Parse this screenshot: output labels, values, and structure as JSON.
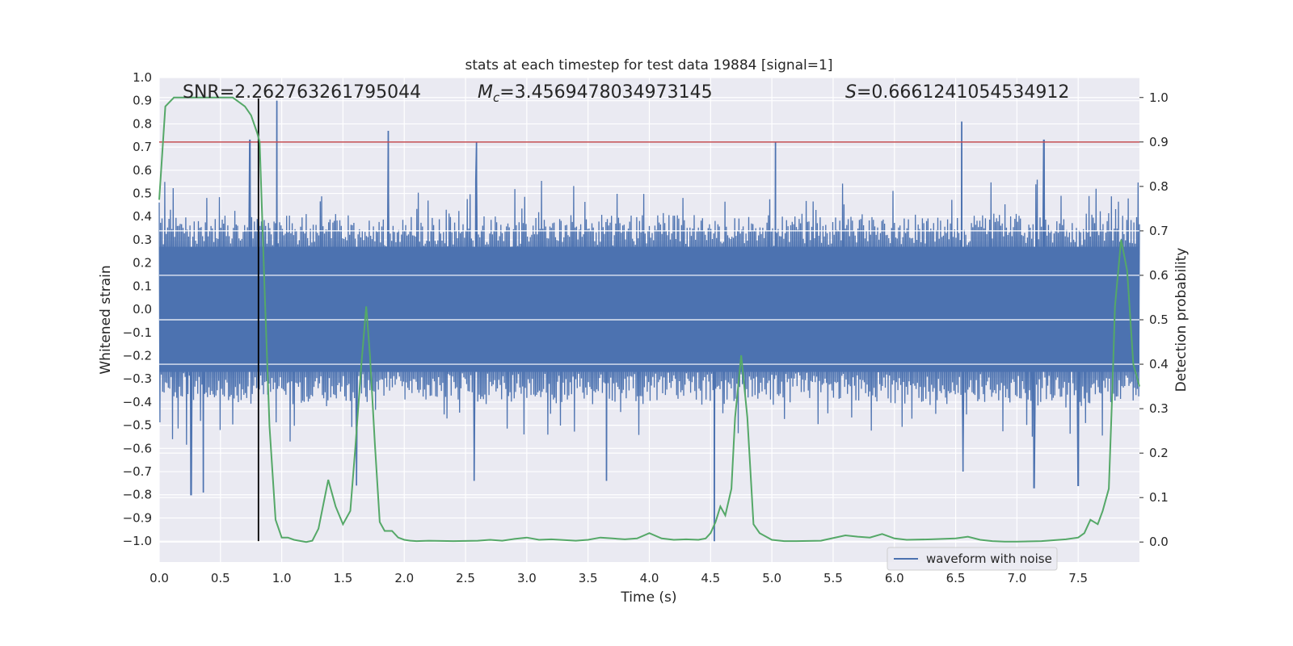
{
  "chart_data": {
    "type": "line",
    "title": "stats at each timestep for test data 19884 [signal=1]",
    "xlabel": "Time (s)",
    "ylabel": "Whitened strain",
    "y2label": "Detection probability",
    "xlim": [
      0,
      8
    ],
    "ylim": [
      -1.09,
      1.0
    ],
    "y2lim": [
      -0.045,
      1.045
    ],
    "xticks": [
      "0.0",
      "0.5",
      "1.0",
      "1.5",
      "2.0",
      "2.5",
      "3.0",
      "3.5",
      "4.0",
      "4.5",
      "5.0",
      "5.5",
      "6.0",
      "6.5",
      "7.0",
      "7.5"
    ],
    "yticks": [
      "1.0",
      "0.9",
      "0.8",
      "0.7",
      "0.6",
      "0.5",
      "0.4",
      "0.3",
      "0.2",
      "0.1",
      "0.0",
      "−0.1",
      "−0.2",
      "−0.3",
      "−0.4",
      "−0.5",
      "−0.6",
      "−0.7",
      "−0.8",
      "−0.9",
      "−1.0"
    ],
    "y2ticks": [
      "1.0",
      "0.9",
      "0.8",
      "0.7",
      "0.6",
      "0.5",
      "0.4",
      "0.3",
      "0.2",
      "0.1",
      "0.0"
    ],
    "annotations": {
      "snr": "SNR=2.262763261795044",
      "mc_symbol": "M",
      "mc_sub": "c",
      "mc_value": "=3.4569478034973145",
      "s_symbol": "S",
      "s_value": "=0.6661241054534912"
    },
    "threshold": {
      "value": 0.9,
      "axis": "right",
      "color": "#c44e52"
    },
    "marker_line": {
      "x": 0.81,
      "y_from": -1.0,
      "y_to": 0.91,
      "color": "#000000"
    },
    "legend": {
      "entries": [
        "waveform with noise"
      ],
      "placement": "lower-right"
    },
    "grid": true,
    "series": [
      {
        "name": "waveform with noise",
        "color": "#4c72b0",
        "axis": "left",
        "note_style": "dense noisy strain",
        "peaks": [
          {
            "x": 0.74,
            "y": 0.73
          },
          {
            "x": 0.96,
            "y": 0.9
          },
          {
            "x": 1.87,
            "y": 0.77
          },
          {
            "x": 2.59,
            "y": 0.72
          },
          {
            "x": 5.03,
            "y": 0.72
          },
          {
            "x": 6.55,
            "y": 0.81
          },
          {
            "x": 7.22,
            "y": 0.73
          },
          {
            "x": 0.26,
            "y": -0.8
          },
          {
            "x": 0.36,
            "y": -0.79
          },
          {
            "x": 1.61,
            "y": -0.76
          },
          {
            "x": 2.57,
            "y": -0.74
          },
          {
            "x": 3.65,
            "y": -0.74
          },
          {
            "x": 4.53,
            "y": -1.0
          },
          {
            "x": 6.56,
            "y": -0.7
          },
          {
            "x": 7.14,
            "y": -0.77
          },
          {
            "x": 7.5,
            "y": -0.76
          }
        ]
      },
      {
        "name": "detection probability",
        "color": "#55a868",
        "axis": "right",
        "x": [
          0,
          0.05,
          0.12,
          0.2,
          0.3,
          0.4,
          0.5,
          0.6,
          0.65,
          0.7,
          0.75,
          0.8,
          0.82,
          0.86,
          0.9,
          0.95,
          1.0,
          1.05,
          1.1,
          1.2,
          1.25,
          1.3,
          1.38,
          1.44,
          1.5,
          1.56,
          1.6,
          1.65,
          1.69,
          1.72,
          1.76,
          1.8,
          1.84,
          1.9,
          1.95,
          2.0,
          2.05,
          2.1,
          2.2,
          2.4,
          2.6,
          2.7,
          2.8,
          2.9,
          3.0,
          3.1,
          3.2,
          3.4,
          3.5,
          3.6,
          3.7,
          3.8,
          3.9,
          4.0,
          4.1,
          4.2,
          4.3,
          4.4,
          4.46,
          4.5,
          4.54,
          4.58,
          4.62,
          4.67,
          4.7,
          4.75,
          4.8,
          4.85,
          4.9,
          5.0,
          5.1,
          5.2,
          5.4,
          5.6,
          5.7,
          5.8,
          5.9,
          6.0,
          6.1,
          6.3,
          6.5,
          6.6,
          6.7,
          6.8,
          6.9,
          7.0,
          7.2,
          7.4,
          7.5,
          7.55,
          7.6,
          7.66,
          7.7,
          7.75,
          7.78,
          7.8,
          7.85,
          7.9,
          7.95,
          8.0
        ],
        "y": [
          0.77,
          0.98,
          1.0,
          1.0,
          1.0,
          1.0,
          1.0,
          1.0,
          0.99,
          0.98,
          0.96,
          0.92,
          0.9,
          0.57,
          0.26,
          0.05,
          0.01,
          0.01,
          0.005,
          0.0,
          0.003,
          0.03,
          0.14,
          0.08,
          0.04,
          0.07,
          0.21,
          0.4,
          0.53,
          0.42,
          0.22,
          0.045,
          0.025,
          0.025,
          0.01,
          0.005,
          0.003,
          0.002,
          0.003,
          0.002,
          0.003,
          0.005,
          0.003,
          0.007,
          0.01,
          0.005,
          0.006,
          0.003,
          0.005,
          0.01,
          0.008,
          0.006,
          0.008,
          0.02,
          0.008,
          0.005,
          0.006,
          0.005,
          0.008,
          0.02,
          0.045,
          0.08,
          0.06,
          0.12,
          0.28,
          0.42,
          0.28,
          0.04,
          0.02,
          0.005,
          0.002,
          0.002,
          0.003,
          0.015,
          0.012,
          0.01,
          0.018,
          0.008,
          0.005,
          0.006,
          0.008,
          0.012,
          0.005,
          0.002,
          0.001,
          0.001,
          0.002,
          0.006,
          0.01,
          0.02,
          0.05,
          0.04,
          0.07,
          0.12,
          0.35,
          0.53,
          0.68,
          0.61,
          0.4,
          0.35
        ]
      }
    ]
  }
}
